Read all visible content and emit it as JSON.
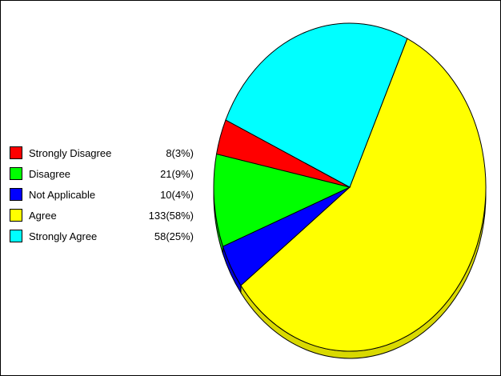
{
  "chart_data": {
    "type": "pie",
    "style": "3d",
    "legend_position": "left",
    "slices": [
      {
        "label": "Strongly Disagree",
        "value": 8,
        "percent": 3,
        "display": "8(3%)",
        "color": "#ff0000"
      },
      {
        "label": "Disagree",
        "value": 21,
        "percent": 9,
        "display": "21(9%)",
        "color": "#00ff00"
      },
      {
        "label": "Not Applicable",
        "value": 10,
        "percent": 4,
        "display": "10(4%)",
        "color": "#0000ff"
      },
      {
        "label": "Agree",
        "value": 133,
        "percent": 58,
        "display": "133(58%)",
        "color": "#ffff00"
      },
      {
        "label": "Strongly Agree",
        "value": 58,
        "percent": 25,
        "display": "58(25%)",
        "color": "#00ffff"
      }
    ]
  }
}
